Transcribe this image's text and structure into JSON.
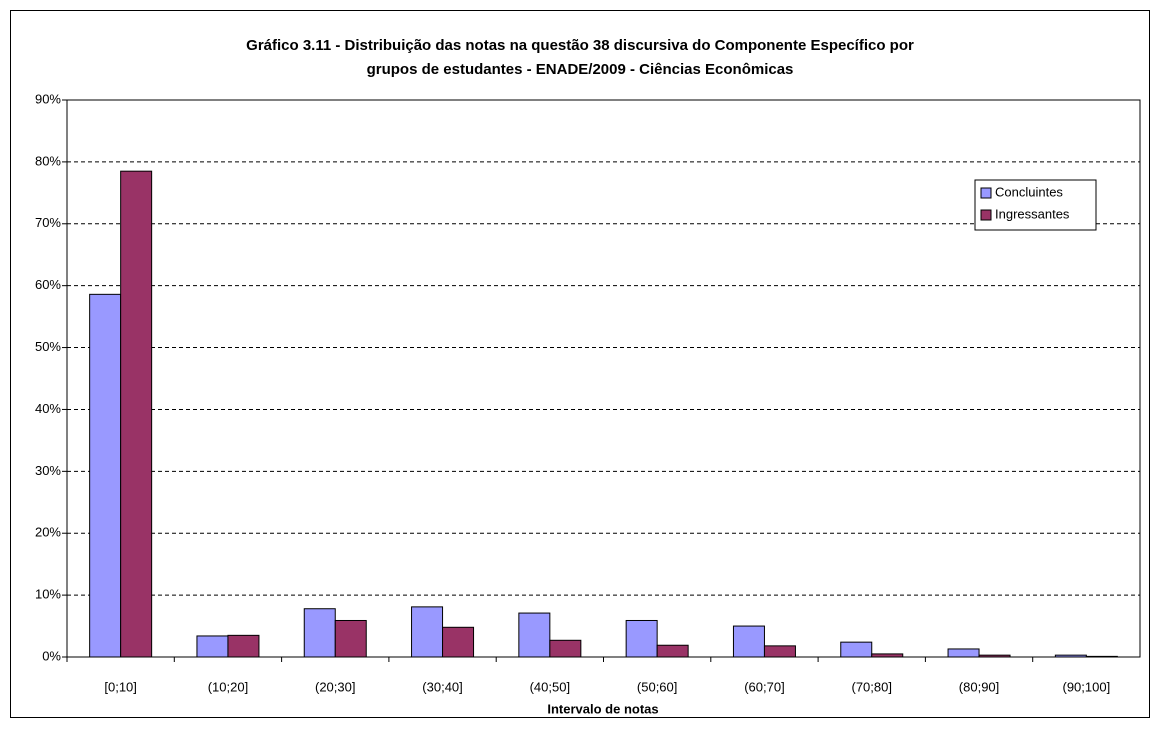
{
  "chart_data": {
    "type": "bar",
    "title": [
      "Gráfico 3.11 - Distribuição das notas na questão 38 discursiva do Componente Específico por",
      "grupos de estudantes - ENADE/2009 - Ciências Econômicas"
    ],
    "x_label": "Intervalo de notas",
    "categories": [
      "[0;10]",
      "(10;20]",
      "(20;30]",
      "(30;40]",
      "(40;50]",
      "(50;60]",
      "(60;70]",
      "(70;80]",
      "(80;90]",
      "(90;100]"
    ],
    "series": [
      {
        "name": "Concluintes",
        "color": "#9999ff",
        "values": [
          58.6,
          3.4,
          7.8,
          8.1,
          7.1,
          5.9,
          5.0,
          2.4,
          1.3,
          0.3
        ]
      },
      {
        "name": "Ingressantes",
        "color": "#993366",
        "values": [
          78.5,
          3.5,
          5.9,
          4.8,
          2.7,
          1.9,
          1.8,
          0.5,
          0.3,
          0.1
        ]
      }
    ],
    "ylim": [
      0,
      90
    ],
    "yticks": [
      {
        "value": 0,
        "label": "0%"
      },
      {
        "value": 10,
        "label": "10%"
      },
      {
        "value": 20,
        "label": "20%"
      },
      {
        "value": 30,
        "label": "30%"
      },
      {
        "value": 40,
        "label": "40%"
      },
      {
        "value": 50,
        "label": "50%"
      },
      {
        "value": 60,
        "label": "60%"
      },
      {
        "value": 70,
        "label": "70%"
      },
      {
        "value": 80,
        "label": "80%"
      },
      {
        "value": 90,
        "label": "90%"
      }
    ],
    "grid": true,
    "legend": "upper right"
  }
}
